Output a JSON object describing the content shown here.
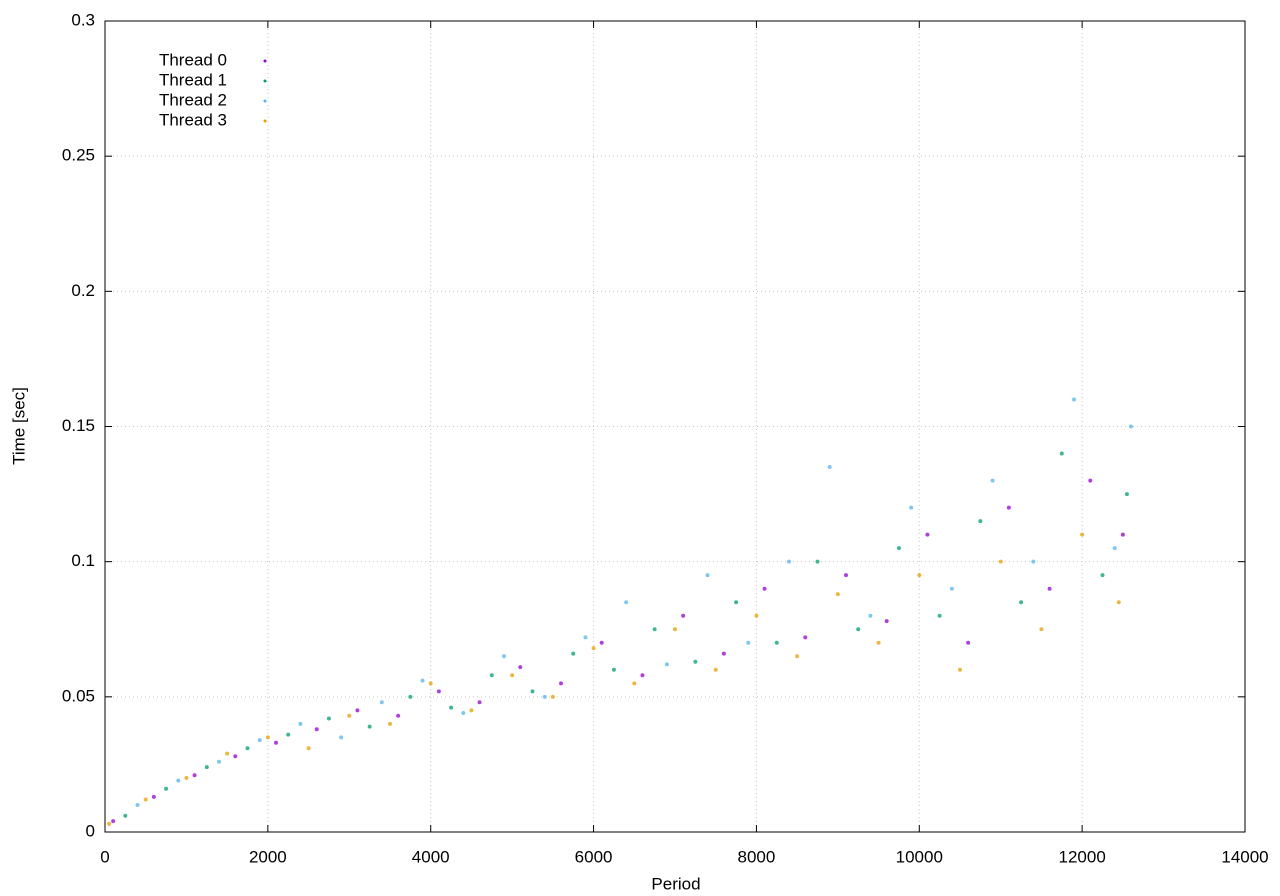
{
  "chart_data": {
    "type": "scatter",
    "x_label": "Period",
    "y_label": "Time [sec]",
    "xlim": [
      0,
      14000
    ],
    "ylim": [
      0,
      0.3
    ],
    "xticks": [
      0,
      2000,
      4000,
      6000,
      8000,
      10000,
      12000,
      14000
    ],
    "yticks": [
      0,
      0.05,
      0.1,
      0.15,
      0.2,
      0.25,
      0.3
    ],
    "grid": true,
    "legend": "top-left",
    "series": [
      {
        "name": "Thread 0",
        "color": "#9400d3",
        "x": [
          100,
          600,
          1100,
          1600,
          2100,
          2600,
          3100,
          3600,
          4100,
          4600,
          5100,
          5600,
          6100,
          6600,
          7100,
          7600,
          8100,
          8600,
          9100,
          9600,
          10100,
          10600,
          11100,
          11600,
          12100,
          12500
        ],
        "values": [
          0.004,
          0.013,
          0.021,
          0.028,
          0.033,
          0.038,
          0.045,
          0.043,
          0.052,
          0.048,
          0.061,
          0.055,
          0.07,
          0.058,
          0.08,
          0.066,
          0.09,
          0.072,
          0.095,
          0.078,
          0.11,
          0.07,
          0.12,
          0.09,
          0.13,
          0.11
        ]
      },
      {
        "name": "Thread 1",
        "color": "#009e73",
        "x": [
          250,
          750,
          1250,
          1750,
          2250,
          2750,
          3250,
          3750,
          4250,
          4750,
          5250,
          5750,
          6250,
          6750,
          7250,
          7750,
          8250,
          8750,
          9250,
          9750,
          10250,
          10750,
          11250,
          11750,
          12250,
          12550
        ],
        "values": [
          0.006,
          0.016,
          0.024,
          0.031,
          0.036,
          0.042,
          0.039,
          0.05,
          0.046,
          0.058,
          0.052,
          0.066,
          0.06,
          0.075,
          0.063,
          0.085,
          0.07,
          0.1,
          0.075,
          0.105,
          0.08,
          0.115,
          0.085,
          0.14,
          0.095,
          0.125
        ]
      },
      {
        "name": "Thread 2",
        "color": "#56b4e9",
        "x": [
          400,
          900,
          1400,
          1900,
          2400,
          2900,
          3400,
          3900,
          4400,
          4900,
          5400,
          5900,
          6400,
          6900,
          7400,
          7900,
          8400,
          8900,
          9400,
          9900,
          10400,
          10900,
          11400,
          11900,
          12400,
          12600
        ],
        "values": [
          0.01,
          0.019,
          0.026,
          0.034,
          0.04,
          0.035,
          0.048,
          0.056,
          0.044,
          0.065,
          0.05,
          0.072,
          0.085,
          0.062,
          0.095,
          0.07,
          0.1,
          0.135,
          0.08,
          0.12,
          0.09,
          0.13,
          0.1,
          0.16,
          0.105,
          0.15
        ]
      },
      {
        "name": "Thread 3",
        "color": "#e69f00",
        "x": [
          50,
          500,
          1000,
          1500,
          2000,
          2500,
          3000,
          3500,
          4000,
          4500,
          5000,
          5500,
          6000,
          6500,
          7000,
          7500,
          8000,
          8500,
          9000,
          9500,
          10000,
          10500,
          11000,
          11500,
          12000,
          12450
        ],
        "values": [
          0.003,
          0.012,
          0.02,
          0.029,
          0.035,
          0.031,
          0.043,
          0.04,
          0.055,
          0.045,
          0.058,
          0.05,
          0.068,
          0.055,
          0.075,
          0.06,
          0.08,
          0.065,
          0.088,
          0.07,
          0.095,
          0.06,
          0.1,
          0.075,
          0.11,
          0.085
        ]
      }
    ]
  }
}
